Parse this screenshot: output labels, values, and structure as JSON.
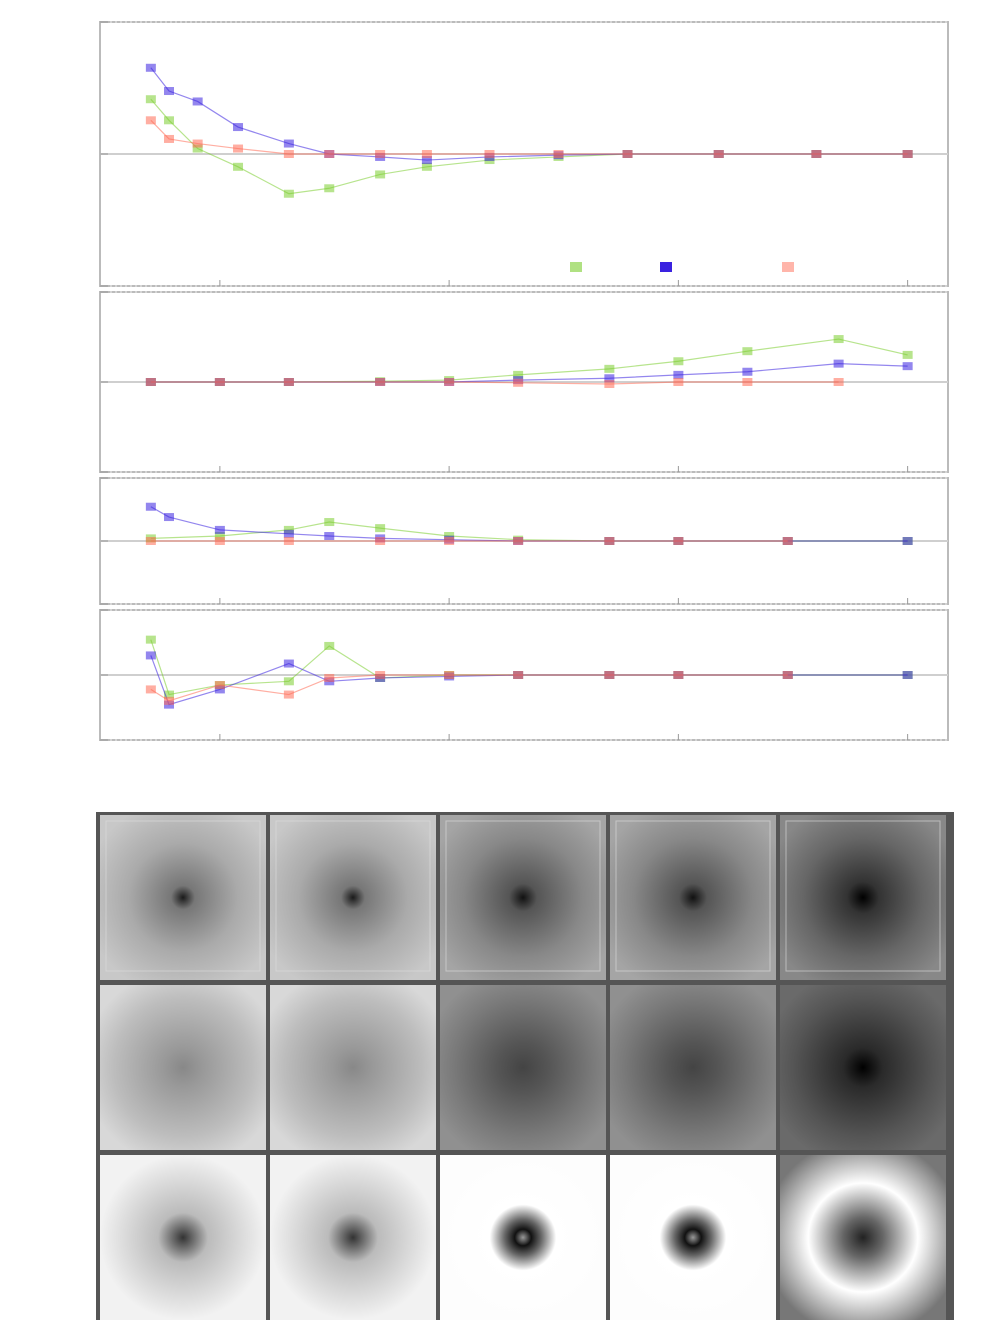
{
  "figure": {
    "annotation": "",
    "xlabel": "",
    "panel_ylabels": [
      "",
      "",
      "",
      ""
    ],
    "image_grid_row_labels": [
      "",
      "",
      ""
    ],
    "image_grid_col_labels": [
      "",
      "",
      "",
      "",
      ""
    ]
  },
  "legend": {
    "entries": [
      {
        "label": "",
        "color": "#7ccd2f"
      },
      {
        "label": "",
        "color": "#3a22e0"
      },
      {
        "label": "",
        "color": "#ff6b55"
      }
    ]
  },
  "chart_data": [
    {
      "type": "scatter",
      "panel": 1,
      "x_scale": "log",
      "xlim": [
        0.03,
        150
      ],
      "ylim": [
        0.1,
        10
      ],
      "y_scale": "log",
      "y_reference": 1.0,
      "series": [
        {
          "color": "#7ccd2f",
          "values": [
            [
              0.05,
              2.6
            ],
            [
              0.06,
              1.8
            ],
            [
              0.08,
              1.1
            ],
            [
              0.12,
              0.8
            ],
            [
              0.2,
              0.5
            ],
            [
              0.3,
              0.55
            ],
            [
              0.5,
              0.7
            ],
            [
              0.8,
              0.8
            ],
            [
              1.5,
              0.9
            ],
            [
              3,
              0.95
            ],
            [
              6,
              1.0
            ],
            [
              15,
              1.0
            ],
            [
              40,
              1.0
            ],
            [
              100,
              1.0
            ]
          ]
        },
        {
          "color": "#3a22e0",
          "values": [
            [
              0.05,
              4.5
            ],
            [
              0.06,
              3.0
            ],
            [
              0.08,
              2.5
            ],
            [
              0.12,
              1.6
            ],
            [
              0.2,
              1.2
            ],
            [
              0.3,
              1.0
            ],
            [
              0.5,
              0.95
            ],
            [
              0.8,
              0.9
            ],
            [
              1.5,
              0.95
            ],
            [
              3,
              0.98
            ],
            [
              6,
              1.0
            ],
            [
              15,
              1.0
            ],
            [
              40,
              1.0
            ],
            [
              100,
              1.0
            ]
          ]
        },
        {
          "color": "#ff6b55",
          "values": [
            [
              0.05,
              1.8
            ],
            [
              0.06,
              1.3
            ],
            [
              0.08,
              1.2
            ],
            [
              0.12,
              1.1
            ],
            [
              0.2,
              1.0
            ],
            [
              0.3,
              1.0
            ],
            [
              0.5,
              1.0
            ],
            [
              0.8,
              1.0
            ],
            [
              1.5,
              1.0
            ],
            [
              3,
              1.0
            ],
            [
              6,
              1.0
            ],
            [
              15,
              1.0
            ],
            [
              40,
              1.0
            ],
            [
              100,
              1.0
            ]
          ]
        }
      ]
    },
    {
      "type": "scatter",
      "panel": 2,
      "x_scale": "log",
      "xlim": [
        0.03,
        150
      ],
      "ylim": [
        0.1,
        10
      ],
      "y_scale": "log",
      "y_reference": 1.0,
      "series": [
        {
          "color": "#7ccd2f",
          "values": [
            [
              0.05,
              1.0
            ],
            [
              0.1,
              1.0
            ],
            [
              0.2,
              1.0
            ],
            [
              0.5,
              1.02
            ],
            [
              1,
              1.05
            ],
            [
              2,
              1.2
            ],
            [
              5,
              1.4
            ],
            [
              10,
              1.7
            ],
            [
              20,
              2.2
            ],
            [
              50,
              3.0
            ],
            [
              100,
              2.0
            ]
          ]
        },
        {
          "color": "#3a22e0",
          "values": [
            [
              0.05,
              1.0
            ],
            [
              0.1,
              1.0
            ],
            [
              0.2,
              1.0
            ],
            [
              0.5,
              1.0
            ],
            [
              1,
              1.0
            ],
            [
              2,
              1.05
            ],
            [
              5,
              1.1
            ],
            [
              10,
              1.2
            ],
            [
              20,
              1.3
            ],
            [
              50,
              1.6
            ],
            [
              100,
              1.5
            ]
          ]
        },
        {
          "color": "#ff6b55",
          "values": [
            [
              0.05,
              1.0
            ],
            [
              0.1,
              1.0
            ],
            [
              0.2,
              1.0
            ],
            [
              0.5,
              1.0
            ],
            [
              1,
              1.0
            ],
            [
              2,
              0.98
            ],
            [
              5,
              0.95
            ],
            [
              10,
              1.0
            ],
            [
              20,
              1.0
            ],
            [
              50,
              1.0
            ]
          ]
        }
      ]
    },
    {
      "type": "scatter",
      "panel": 3,
      "x_scale": "log",
      "xlim": [
        0.03,
        150
      ],
      "ylim": [
        0.1,
        10
      ],
      "y_scale": "log",
      "y_reference": 1.0,
      "series": [
        {
          "color": "#7ccd2f",
          "values": [
            [
              0.05,
              1.1
            ],
            [
              0.1,
              1.2
            ],
            [
              0.2,
              1.5
            ],
            [
              0.3,
              2.0
            ],
            [
              0.5,
              1.6
            ],
            [
              1,
              1.2
            ],
            [
              2,
              1.05
            ],
            [
              5,
              1.0
            ],
            [
              10,
              1.0
            ],
            [
              30,
              1.0
            ],
            [
              100,
              1.0
            ]
          ]
        },
        {
          "color": "#3a22e0",
          "values": [
            [
              0.05,
              3.5
            ],
            [
              0.06,
              2.4
            ],
            [
              0.1,
              1.5
            ],
            [
              0.2,
              1.3
            ],
            [
              0.3,
              1.2
            ],
            [
              0.5,
              1.1
            ],
            [
              1,
              1.05
            ],
            [
              2,
              1.0
            ],
            [
              5,
              1.0
            ],
            [
              10,
              1.0
            ],
            [
              30,
              1.0
            ],
            [
              100,
              1.0
            ]
          ]
        },
        {
          "color": "#ff6b55",
          "values": [
            [
              0.05,
              1.0
            ],
            [
              0.1,
              1.0
            ],
            [
              0.2,
              1.0
            ],
            [
              0.5,
              1.0
            ],
            [
              1,
              1.0
            ],
            [
              2,
              1.0
            ],
            [
              5,
              1.0
            ],
            [
              10,
              1.0
            ],
            [
              30,
              1.0
            ]
          ]
        }
      ]
    },
    {
      "type": "scatter",
      "panel": 4,
      "x_scale": "log",
      "xlim": [
        0.03,
        150
      ],
      "ylim": [
        0.1,
        10
      ],
      "y_scale": "log",
      "y_reference": 1.0,
      "series": [
        {
          "color": "#7ccd2f",
          "values": [
            [
              0.05,
              3.5
            ],
            [
              0.06,
              0.5
            ],
            [
              0.1,
              0.7
            ],
            [
              0.2,
              0.8
            ],
            [
              0.3,
              2.8
            ],
            [
              0.5,
              0.9
            ],
            [
              1,
              1.0
            ],
            [
              2,
              1.0
            ],
            [
              5,
              1.0
            ],
            [
              10,
              1.0
            ],
            [
              30,
              1.0
            ],
            [
              100,
              1.0
            ]
          ]
        },
        {
          "color": "#3a22e0",
          "values": [
            [
              0.05,
              2.0
            ],
            [
              0.06,
              0.35
            ],
            [
              0.1,
              0.6
            ],
            [
              0.2,
              1.5
            ],
            [
              0.3,
              0.8
            ],
            [
              0.5,
              0.9
            ],
            [
              1,
              0.95
            ],
            [
              2,
              1.0
            ],
            [
              5,
              1.0
            ],
            [
              10,
              1.0
            ],
            [
              30,
              1.0
            ],
            [
              100,
              1.0
            ]
          ]
        },
        {
          "color": "#ff6b55",
          "values": [
            [
              0.05,
              0.6
            ],
            [
              0.06,
              0.4
            ],
            [
              0.1,
              0.7
            ],
            [
              0.2,
              0.5
            ],
            [
              0.3,
              0.9
            ],
            [
              0.5,
              1.0
            ],
            [
              1,
              1.0
            ],
            [
              2,
              1.0
            ],
            [
              5,
              1.0
            ],
            [
              10,
              1.0
            ],
            [
              30,
              1.0
            ]
          ]
        }
      ]
    }
  ]
}
